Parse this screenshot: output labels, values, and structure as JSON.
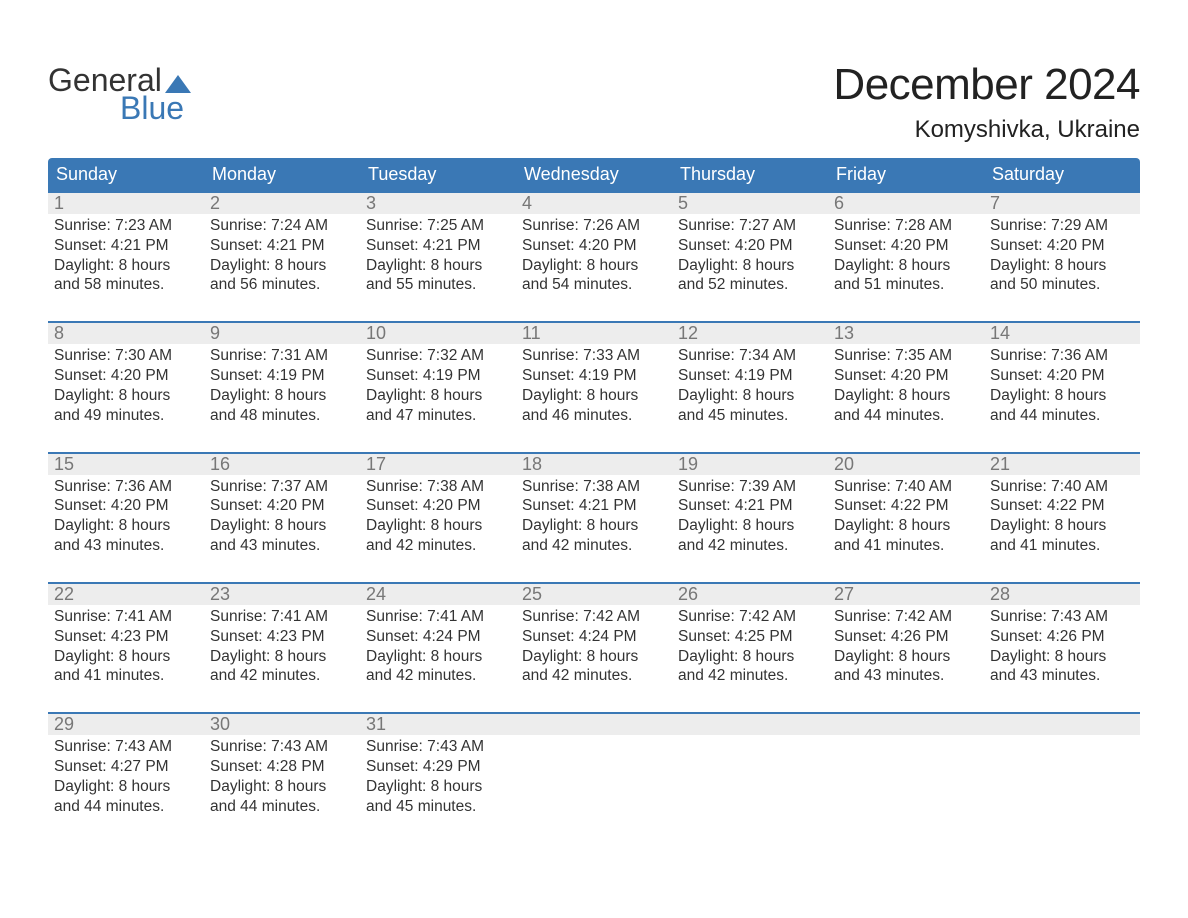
{
  "logo": {
    "top": "General",
    "bottom": "Blue",
    "top_color": "#333333",
    "bottom_color": "#3a78b5",
    "flag_color": "#3a78b5"
  },
  "title": "December 2024",
  "location": "Komyshivka, Ukraine",
  "colors": {
    "header_bg": "#3a78b5",
    "header_text": "#ffffff",
    "week_border": "#3a78b5",
    "daynum_bg": "#ededed",
    "daynum_text": "#777777",
    "body_text": "#333333",
    "background": "#ffffff"
  },
  "fonts": {
    "title_size": 44,
    "location_size": 24,
    "weekday_size": 18,
    "daynum_size": 18,
    "body_size": 15.5
  },
  "weekdays": [
    "Sunday",
    "Monday",
    "Tuesday",
    "Wednesday",
    "Thursday",
    "Friday",
    "Saturday"
  ],
  "weeks": [
    [
      {
        "n": "1",
        "sunrise": "Sunrise: 7:23 AM",
        "sunset": "Sunset: 4:21 PM",
        "d1": "Daylight: 8 hours",
        "d2": "and 58 minutes."
      },
      {
        "n": "2",
        "sunrise": "Sunrise: 7:24 AM",
        "sunset": "Sunset: 4:21 PM",
        "d1": "Daylight: 8 hours",
        "d2": "and 56 minutes."
      },
      {
        "n": "3",
        "sunrise": "Sunrise: 7:25 AM",
        "sunset": "Sunset: 4:21 PM",
        "d1": "Daylight: 8 hours",
        "d2": "and 55 minutes."
      },
      {
        "n": "4",
        "sunrise": "Sunrise: 7:26 AM",
        "sunset": "Sunset: 4:20 PM",
        "d1": "Daylight: 8 hours",
        "d2": "and 54 minutes."
      },
      {
        "n": "5",
        "sunrise": "Sunrise: 7:27 AM",
        "sunset": "Sunset: 4:20 PM",
        "d1": "Daylight: 8 hours",
        "d2": "and 52 minutes."
      },
      {
        "n": "6",
        "sunrise": "Sunrise: 7:28 AM",
        "sunset": "Sunset: 4:20 PM",
        "d1": "Daylight: 8 hours",
        "d2": "and 51 minutes."
      },
      {
        "n": "7",
        "sunrise": "Sunrise: 7:29 AM",
        "sunset": "Sunset: 4:20 PM",
        "d1": "Daylight: 8 hours",
        "d2": "and 50 minutes."
      }
    ],
    [
      {
        "n": "8",
        "sunrise": "Sunrise: 7:30 AM",
        "sunset": "Sunset: 4:20 PM",
        "d1": "Daylight: 8 hours",
        "d2": "and 49 minutes."
      },
      {
        "n": "9",
        "sunrise": "Sunrise: 7:31 AM",
        "sunset": "Sunset: 4:19 PM",
        "d1": "Daylight: 8 hours",
        "d2": "and 48 minutes."
      },
      {
        "n": "10",
        "sunrise": "Sunrise: 7:32 AM",
        "sunset": "Sunset: 4:19 PM",
        "d1": "Daylight: 8 hours",
        "d2": "and 47 minutes."
      },
      {
        "n": "11",
        "sunrise": "Sunrise: 7:33 AM",
        "sunset": "Sunset: 4:19 PM",
        "d1": "Daylight: 8 hours",
        "d2": "and 46 minutes."
      },
      {
        "n": "12",
        "sunrise": "Sunrise: 7:34 AM",
        "sunset": "Sunset: 4:19 PM",
        "d1": "Daylight: 8 hours",
        "d2": "and 45 minutes."
      },
      {
        "n": "13",
        "sunrise": "Sunrise: 7:35 AM",
        "sunset": "Sunset: 4:20 PM",
        "d1": "Daylight: 8 hours",
        "d2": "and 44 minutes."
      },
      {
        "n": "14",
        "sunrise": "Sunrise: 7:36 AM",
        "sunset": "Sunset: 4:20 PM",
        "d1": "Daylight: 8 hours",
        "d2": "and 44 minutes."
      }
    ],
    [
      {
        "n": "15",
        "sunrise": "Sunrise: 7:36 AM",
        "sunset": "Sunset: 4:20 PM",
        "d1": "Daylight: 8 hours",
        "d2": "and 43 minutes."
      },
      {
        "n": "16",
        "sunrise": "Sunrise: 7:37 AM",
        "sunset": "Sunset: 4:20 PM",
        "d1": "Daylight: 8 hours",
        "d2": "and 43 minutes."
      },
      {
        "n": "17",
        "sunrise": "Sunrise: 7:38 AM",
        "sunset": "Sunset: 4:20 PM",
        "d1": "Daylight: 8 hours",
        "d2": "and 42 minutes."
      },
      {
        "n": "18",
        "sunrise": "Sunrise: 7:38 AM",
        "sunset": "Sunset: 4:21 PM",
        "d1": "Daylight: 8 hours",
        "d2": "and 42 minutes."
      },
      {
        "n": "19",
        "sunrise": "Sunrise: 7:39 AM",
        "sunset": "Sunset: 4:21 PM",
        "d1": "Daylight: 8 hours",
        "d2": "and 42 minutes."
      },
      {
        "n": "20",
        "sunrise": "Sunrise: 7:40 AM",
        "sunset": "Sunset: 4:22 PM",
        "d1": "Daylight: 8 hours",
        "d2": "and 41 minutes."
      },
      {
        "n": "21",
        "sunrise": "Sunrise: 7:40 AM",
        "sunset": "Sunset: 4:22 PM",
        "d1": "Daylight: 8 hours",
        "d2": "and 41 minutes."
      }
    ],
    [
      {
        "n": "22",
        "sunrise": "Sunrise: 7:41 AM",
        "sunset": "Sunset: 4:23 PM",
        "d1": "Daylight: 8 hours",
        "d2": "and 41 minutes."
      },
      {
        "n": "23",
        "sunrise": "Sunrise: 7:41 AM",
        "sunset": "Sunset: 4:23 PM",
        "d1": "Daylight: 8 hours",
        "d2": "and 42 minutes."
      },
      {
        "n": "24",
        "sunrise": "Sunrise: 7:41 AM",
        "sunset": "Sunset: 4:24 PM",
        "d1": "Daylight: 8 hours",
        "d2": "and 42 minutes."
      },
      {
        "n": "25",
        "sunrise": "Sunrise: 7:42 AM",
        "sunset": "Sunset: 4:24 PM",
        "d1": "Daylight: 8 hours",
        "d2": "and 42 minutes."
      },
      {
        "n": "26",
        "sunrise": "Sunrise: 7:42 AM",
        "sunset": "Sunset: 4:25 PM",
        "d1": "Daylight: 8 hours",
        "d2": "and 42 minutes."
      },
      {
        "n": "27",
        "sunrise": "Sunrise: 7:42 AM",
        "sunset": "Sunset: 4:26 PM",
        "d1": "Daylight: 8 hours",
        "d2": "and 43 minutes."
      },
      {
        "n": "28",
        "sunrise": "Sunrise: 7:43 AM",
        "sunset": "Sunset: 4:26 PM",
        "d1": "Daylight: 8 hours",
        "d2": "and 43 minutes."
      }
    ],
    [
      {
        "n": "29",
        "sunrise": "Sunrise: 7:43 AM",
        "sunset": "Sunset: 4:27 PM",
        "d1": "Daylight: 8 hours",
        "d2": "and 44 minutes."
      },
      {
        "n": "30",
        "sunrise": "Sunrise: 7:43 AM",
        "sunset": "Sunset: 4:28 PM",
        "d1": "Daylight: 8 hours",
        "d2": "and 44 minutes."
      },
      {
        "n": "31",
        "sunrise": "Sunrise: 7:43 AM",
        "sunset": "Sunset: 4:29 PM",
        "d1": "Daylight: 8 hours",
        "d2": "and 45 minutes."
      },
      {
        "empty": true
      },
      {
        "empty": true
      },
      {
        "empty": true
      },
      {
        "empty": true
      }
    ]
  ]
}
